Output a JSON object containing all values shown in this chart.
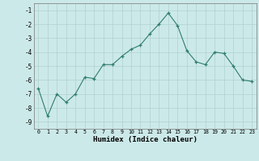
{
  "x": [
    0,
    1,
    2,
    3,
    4,
    5,
    6,
    7,
    8,
    9,
    10,
    11,
    12,
    13,
    14,
    15,
    16,
    17,
    18,
    19,
    20,
    21,
    22,
    23
  ],
  "y": [
    -6.6,
    -8.6,
    -7.0,
    -7.6,
    -7.0,
    -5.8,
    -5.9,
    -4.9,
    -4.9,
    -4.3,
    -3.8,
    -3.5,
    -2.7,
    -2.0,
    -1.2,
    -2.1,
    -3.9,
    -4.7,
    -4.9,
    -4.0,
    -4.1,
    -5.0,
    -6.0,
    -6.1
  ],
  "xlabel": "Humidex (Indice chaleur)",
  "ylim": [
    -9.5,
    -0.5
  ],
  "xlim": [
    -0.5,
    23.5
  ],
  "yticks": [
    -1,
    -2,
    -3,
    -4,
    -5,
    -6,
    -7,
    -8,
    -9
  ],
  "xticks": [
    0,
    1,
    2,
    3,
    4,
    5,
    6,
    7,
    8,
    9,
    10,
    11,
    12,
    13,
    14,
    15,
    16,
    17,
    18,
    19,
    20,
    21,
    22,
    23
  ],
  "line_color": "#2e7d6e",
  "marker": "+",
  "bg_color": "#cce9e9",
  "grid_color": "#b0d0d0",
  "spine_color": "#777777"
}
